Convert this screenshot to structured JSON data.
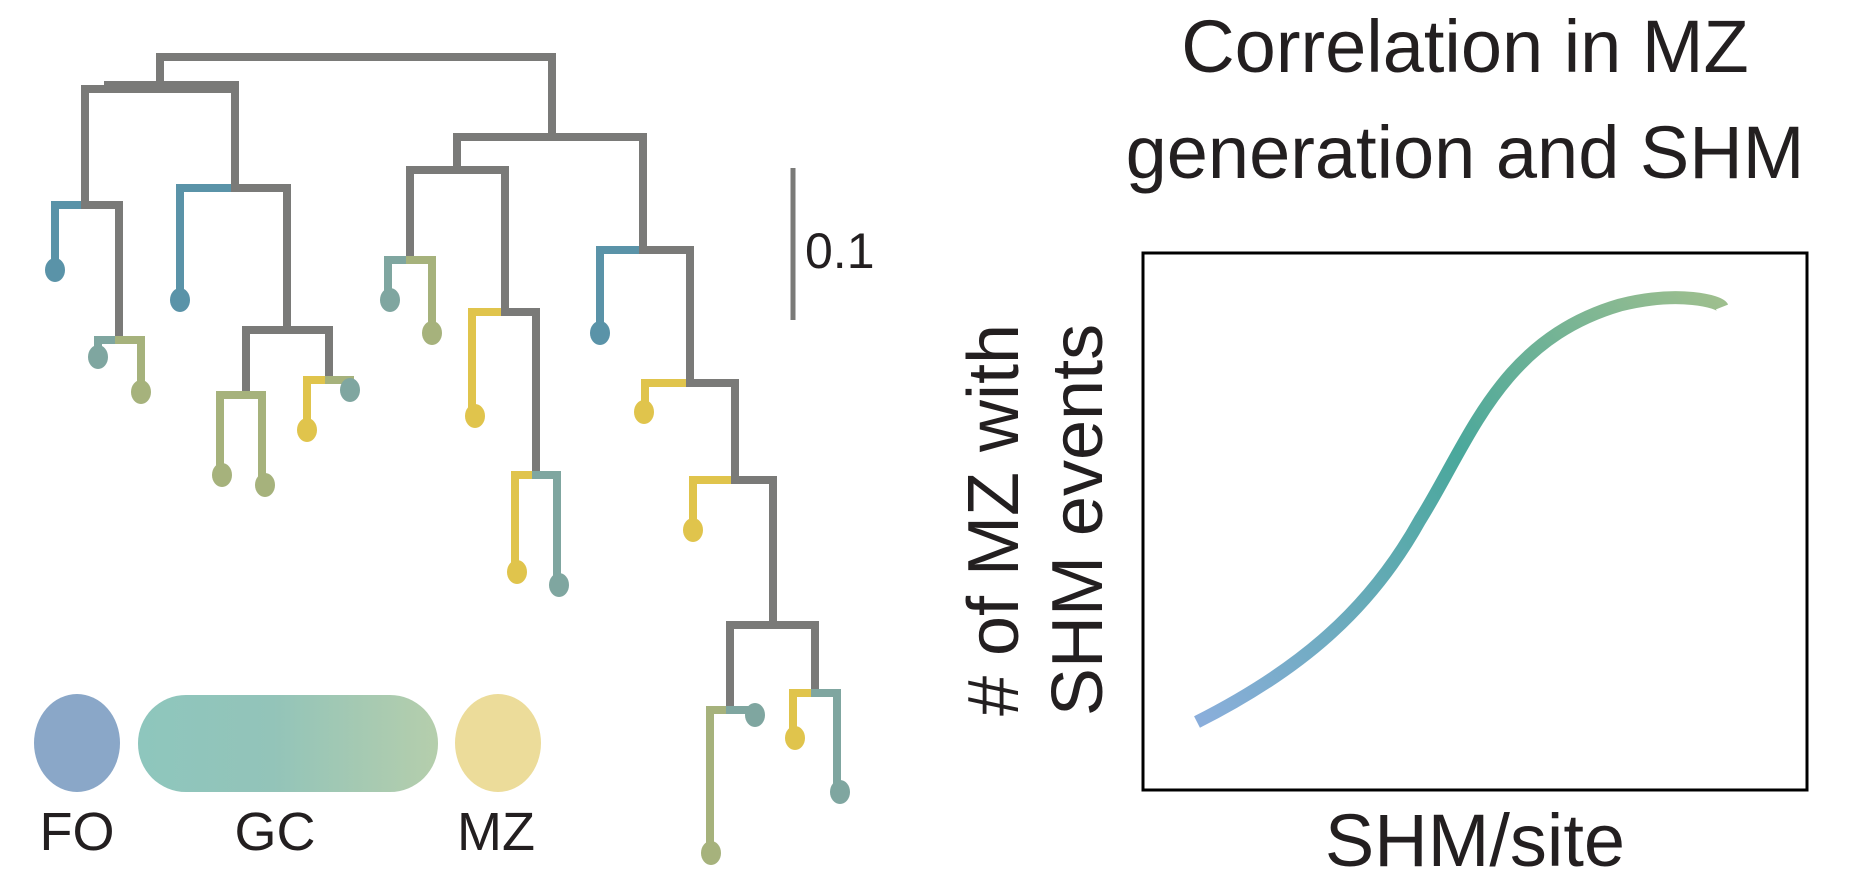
{
  "scale_bar": {
    "label": "0.1"
  },
  "legend": {
    "items": [
      {
        "label": "FO",
        "color": "#8aa7c8"
      },
      {
        "label": "GC",
        "colors": [
          "#8ec6bd",
          "#b5ceac"
        ]
      },
      {
        "label": "MZ",
        "color": "#ecdc9a"
      }
    ]
  },
  "chart": {
    "title_lines": [
      "Correlation in MZ",
      "generation and SHM"
    ],
    "ylabel_lines": [
      "# of MZ with",
      "SHM events"
    ],
    "xlabel": "SHM/site",
    "curve_gradient": [
      "#8aaedb",
      "#4aa89c",
      "#9ebf8e"
    ]
  },
  "colors": {
    "branch": "#7a7a78",
    "fo": "#5a93a8",
    "gc_mid": "#7fa6a0",
    "gc_olive": "#a6b27c",
    "mz": "#e0c44c",
    "frame": "#000000"
  }
}
